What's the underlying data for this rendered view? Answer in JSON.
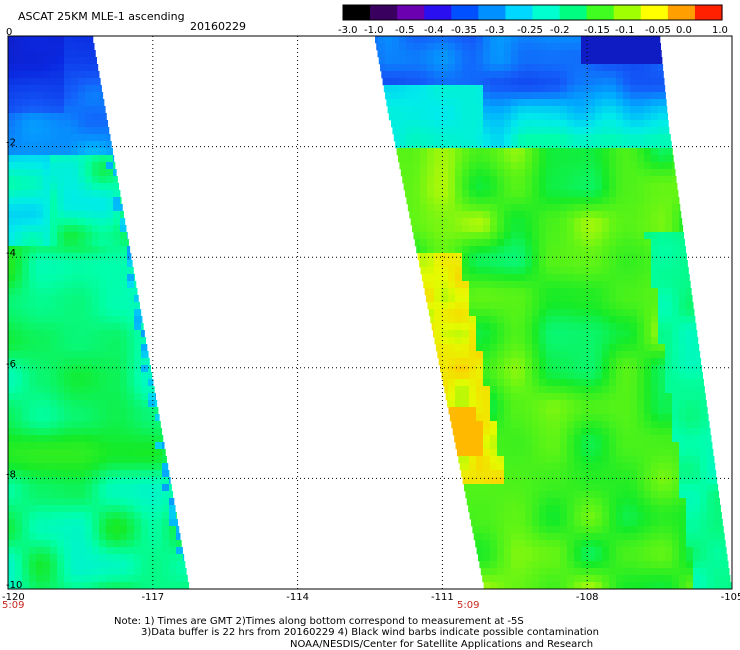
{
  "header": {
    "title": "ASCAT 25KM MLE-1 ascending",
    "date": "20160229"
  },
  "colorbar": {
    "labels": [
      "-3.0",
      "-1.0",
      "-0.5",
      "-0.4",
      "-0.35",
      "-0.3",
      "-0.25",
      "-0.2",
      "-0.15",
      "-0.1",
      "-0.05",
      "0.0",
      "1.0"
    ],
    "colors": [
      "#000000",
      "#3a0060",
      "#6a00b0",
      "#2a10f0",
      "#0050ff",
      "#0090ff",
      "#00d8ff",
      "#00ffd0",
      "#00ff80",
      "#40ff20",
      "#a0ff00",
      "#ffff00",
      "#ffa000",
      "#ff2000"
    ]
  },
  "map": {
    "x_ticks": [
      "-120",
      "-117",
      "-114",
      "-111",
      "-108",
      "-105"
    ],
    "y_ticks": [
      "0",
      "-2",
      "-4",
      "-6",
      "-8",
      "-10"
    ],
    "time_labels": [
      "5:09",
      "5:09"
    ],
    "lon_range": [
      -120,
      -105
    ],
    "lat_range": [
      -10,
      0
    ],
    "grid": true
  },
  "footer": {
    "line1": "Note: 1) Times are GMT 2)Times along bottom correspond to measurement at -5S",
    "line2": "3)Data buffer is 22 hrs from 20160229 4) Black wind barbs indicate possible contamination",
    "line3": "NOAA/NESDIS/Center for Satellite Applications and Research"
  }
}
